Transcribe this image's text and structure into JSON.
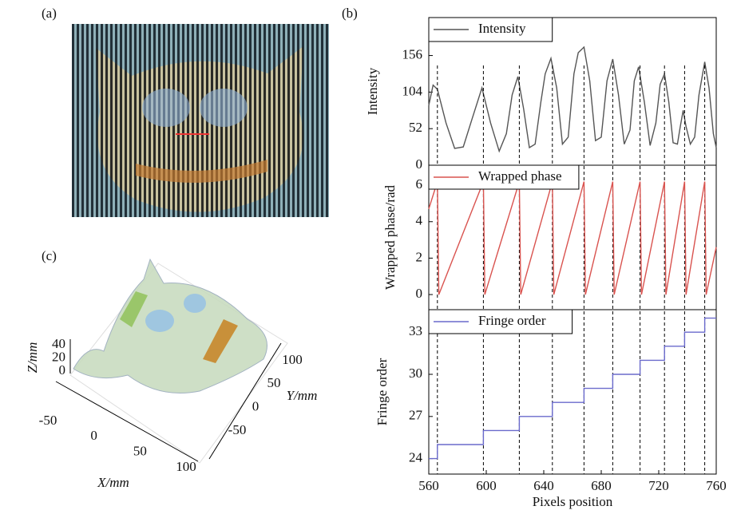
{
  "panel_labels": [
    "(a)",
    "(b)",
    "(c)"
  ],
  "chart_data": [
    {
      "type": "line",
      "ylabel": "Intensity",
      "ylim": [
        0,
        210
      ],
      "yticks": [
        0,
        52,
        104,
        156
      ],
      "vlines": [
        566,
        598,
        623,
        646,
        668,
        688,
        707,
        724,
        738,
        752
      ],
      "series": [
        {
          "name": "Intensity",
          "color": "#555555",
          "x": [
            560,
            563,
            566,
            572,
            578,
            584,
            590,
            597,
            603,
            609,
            614,
            618,
            622,
            626,
            630,
            634,
            638,
            641,
            645,
            649,
            653,
            657,
            661,
            664,
            668,
            672,
            676,
            680,
            684,
            688,
            692,
            696,
            700,
            703,
            706,
            710,
            714,
            718,
            721,
            724,
            727,
            730,
            733,
            735,
            737,
            739,
            742,
            745,
            748,
            752,
            755,
            758,
            760
          ],
          "values": [
            85,
            114,
            108,
            60,
            24,
            26,
            65,
            110,
            60,
            20,
            45,
            100,
            126,
            80,
            25,
            30,
            90,
            130,
            152,
            110,
            30,
            40,
            130,
            160,
            168,
            120,
            35,
            40,
            120,
            151,
            100,
            30,
            50,
            120,
            140,
            90,
            28,
            60,
            115,
            130,
            90,
            32,
            30,
            55,
            78,
            55,
            30,
            40,
            100,
            147,
            110,
            45,
            25
          ]
        }
      ]
    },
    {
      "type": "line",
      "ylabel": "Wrapped phase/rad",
      "ylim": [
        -0.83,
        7.1
      ],
      "yticks": [
        0,
        2,
        4,
        6
      ],
      "series": [
        {
          "name": "Wrapped phase",
          "color": "#d9534f",
          "x": [
            560,
            566,
            567,
            598,
            599,
            623,
            624,
            646,
            647,
            668,
            669,
            688,
            689,
            707,
            708,
            724,
            725,
            738,
            739,
            752,
            753,
            760
          ],
          "values": [
            4.7,
            6.2,
            0,
            6.2,
            0,
            6.2,
            0,
            6.2,
            0,
            6.2,
            0,
            6.2,
            0,
            6.2,
            0,
            6.2,
            0,
            6.2,
            0,
            6.2,
            0,
            2.6
          ]
        }
      ]
    },
    {
      "type": "line",
      "ylabel": "Fringe order",
      "xlabel": "Pixels position",
      "ylim": [
        22.9,
        34.6
      ],
      "yticks": [
        24,
        27,
        30,
        33
      ],
      "xlim": [
        560,
        760
      ],
      "xticks": [
        560,
        600,
        640,
        680,
        720,
        760
      ],
      "series": [
        {
          "name": "Fringe order",
          "color": "#6a6acc",
          "x": [
            560,
            566,
            566,
            598,
            598,
            623,
            623,
            646,
            646,
            668,
            668,
            688,
            688,
            707,
            707,
            724,
            724,
            738,
            738,
            752,
            752,
            760
          ],
          "values": [
            24,
            24,
            25,
            25,
            26,
            26,
            27,
            27,
            28,
            28,
            29,
            29,
            30,
            30,
            31,
            31,
            32,
            32,
            33,
            33,
            34,
            34
          ]
        }
      ]
    },
    {
      "type": "surface3d",
      "xlabel": "X/mm",
      "ylabel": "Y/mm",
      "zlabel": "Z/mm",
      "xticks": [
        -50,
        0,
        50,
        100
      ],
      "yticks": [
        -50,
        0,
        50,
        100
      ],
      "zticks": [
        0,
        20,
        40
      ]
    }
  ]
}
